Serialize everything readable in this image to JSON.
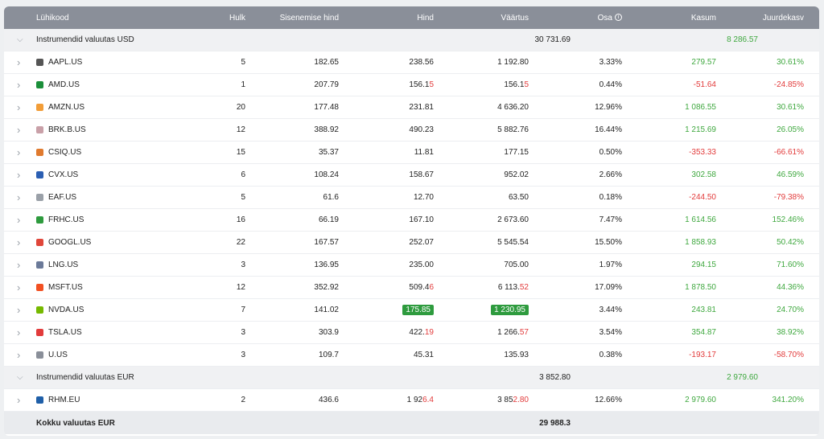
{
  "header": {
    "ticker": "Lühikood",
    "qty": "Hulk",
    "entry": "Sisenemise hind",
    "price": "Hind",
    "value": "Väärtus",
    "share": "Osa",
    "share_icon": "info-icon",
    "profit": "Kasum",
    "growth": "Juurdekasv"
  },
  "groups": [
    {
      "name": "Instrumendid valuutas USD",
      "value": "30 731.69",
      "profit": "8 286.57",
      "rows": [
        {
          "ticker": "AAPL.US",
          "icon": "apple-icon",
          "color": "#555",
          "qty": "5",
          "entry": "182.65",
          "price_a": "238.56",
          "price_b": "",
          "value_a": "1 192.80",
          "value_b": "",
          "share": "3.33%",
          "profit": "279.57",
          "growth": "30.61%",
          "neg": false,
          "hl": false
        },
        {
          "ticker": "AMD.US",
          "icon": "amd-icon",
          "color": "#1b8f3a",
          "qty": "1",
          "entry": "207.79",
          "price_a": "156.1",
          "price_b": "5",
          "value_a": "156.1",
          "value_b": "5",
          "share": "0.44%",
          "profit": "-51.64",
          "growth": "-24.85%",
          "neg": true,
          "hl": false
        },
        {
          "ticker": "AMZN.US",
          "icon": "amazon-icon",
          "color": "#f29d38",
          "qty": "20",
          "entry": "177.48",
          "price_a": "231.81",
          "price_b": "",
          "value_a": "4 636.20",
          "value_b": "",
          "share": "12.96%",
          "profit": "1 086.55",
          "growth": "30.61%",
          "neg": false,
          "hl": false
        },
        {
          "ticker": "BRK.B.US",
          "icon": "berkshire-icon",
          "color": "#c9a0a8",
          "qty": "12",
          "entry": "388.92",
          "price_a": "490.23",
          "price_b": "",
          "value_a": "5 882.76",
          "value_b": "",
          "share": "16.44%",
          "profit": "1 215.69",
          "growth": "26.05%",
          "neg": false,
          "hl": false
        },
        {
          "ticker": "CSIQ.US",
          "icon": "canadian-solar-icon",
          "color": "#e07a2e",
          "qty": "15",
          "entry": "35.37",
          "price_a": "11.81",
          "price_b": "",
          "value_a": "177.15",
          "value_b": "",
          "share": "0.50%",
          "profit": "-353.33",
          "growth": "-66.61%",
          "neg": true,
          "hl": false
        },
        {
          "ticker": "CVX.US",
          "icon": "chevron-logo-icon",
          "color": "#2b5fb3",
          "qty": "6",
          "entry": "108.24",
          "price_a": "158.67",
          "price_b": "",
          "value_a": "952.02",
          "value_b": "",
          "share": "2.66%",
          "profit": "302.58",
          "growth": "46.59%",
          "neg": false,
          "hl": false
        },
        {
          "ticker": "EAF.US",
          "icon": "graftech-icon",
          "color": "#9aa0a8",
          "qty": "5",
          "entry": "61.6",
          "price_a": "12.70",
          "price_b": "",
          "value_a": "63.50",
          "value_b": "",
          "share": "0.18%",
          "profit": "-244.50",
          "growth": "-79.38%",
          "neg": true,
          "hl": false
        },
        {
          "ticker": "FRHC.US",
          "icon": "freedom-icon",
          "color": "#2e9b3e",
          "qty": "16",
          "entry": "66.19",
          "price_a": "167.10",
          "price_b": "",
          "value_a": "2 673.60",
          "value_b": "",
          "share": "7.47%",
          "profit": "1 614.56",
          "growth": "152.46%",
          "neg": false,
          "hl": false
        },
        {
          "ticker": "GOOGL.US",
          "icon": "google-icon",
          "color": "#e0463a",
          "qty": "22",
          "entry": "167.57",
          "price_a": "252.07",
          "price_b": "",
          "value_a": "5 545.54",
          "value_b": "",
          "share": "15.50%",
          "profit": "1 858.93",
          "growth": "50.42%",
          "neg": false,
          "hl": false
        },
        {
          "ticker": "LNG.US",
          "icon": "cheniere-icon",
          "color": "#6b7a99",
          "qty": "3",
          "entry": "136.95",
          "price_a": "235.00",
          "price_b": "",
          "value_a": "705.00",
          "value_b": "",
          "share": "1.97%",
          "profit": "294.15",
          "growth": "71.60%",
          "neg": false,
          "hl": false
        },
        {
          "ticker": "MSFT.US",
          "icon": "microsoft-icon",
          "color": "#f25022",
          "qty": "12",
          "entry": "352.92",
          "price_a": "509.4",
          "price_b": "6",
          "value_a": "6 113.",
          "value_b": "52",
          "share": "17.09%",
          "profit": "1 878.50",
          "growth": "44.36%",
          "neg": false,
          "hl": false
        },
        {
          "ticker": "NVDA.US",
          "icon": "nvidia-icon",
          "color": "#76b900",
          "qty": "7",
          "entry": "141.02",
          "price_a": "175.85",
          "price_b": "",
          "value_a": "1 230.95",
          "value_b": "",
          "share": "3.44%",
          "profit": "243.81",
          "growth": "24.70%",
          "neg": false,
          "hl": true
        },
        {
          "ticker": "TSLA.US",
          "icon": "tesla-icon",
          "color": "#e23b3b",
          "qty": "3",
          "entry": "303.9",
          "price_a": "422.",
          "price_b": "19",
          "value_a": "1 266.",
          "value_b": "57",
          "share": "3.54%",
          "profit": "354.87",
          "growth": "38.92%",
          "neg": false,
          "hl": false
        },
        {
          "ticker": "U.US",
          "icon": "unity-icon",
          "color": "#8a8f99",
          "qty": "3",
          "entry": "109.7",
          "price_a": "45.31",
          "price_b": "",
          "value_a": "135.93",
          "value_b": "",
          "share": "0.38%",
          "profit": "-193.17",
          "growth": "-58.70%",
          "neg": true,
          "hl": false
        }
      ]
    },
    {
      "name": "Instrumendid valuutas EUR",
      "value": "3 852.80",
      "profit": "2 979.60",
      "rows": [
        {
          "ticker": "RHM.EU",
          "icon": "rheinmetall-icon",
          "color": "#1f5fa8",
          "qty": "2",
          "entry": "436.6",
          "price_a": "1 92",
          "price_b": "6.4",
          "value_a": "3 85",
          "value_b": "2.80",
          "share": "12.66%",
          "profit": "2 979.60",
          "growth": "341.20%",
          "neg": false,
          "hl": false
        }
      ]
    }
  ],
  "total": {
    "label": "Kokku valuutas EUR",
    "value": "29 988.3"
  }
}
